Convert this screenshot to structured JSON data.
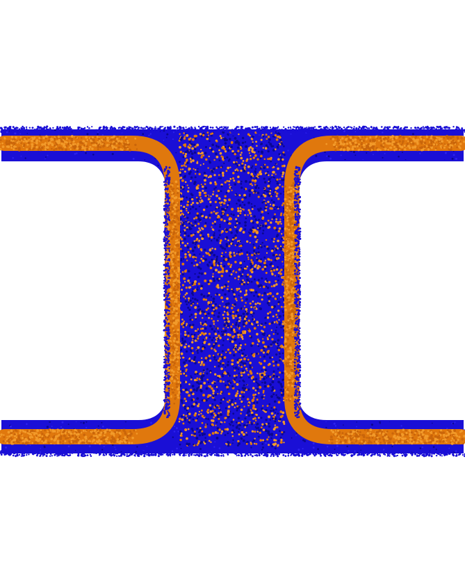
{
  "scene": {
    "subject": "membrane-fusion-stalk-particle-render",
    "colors": {
      "background": "#ffffff",
      "headgroup": "#1a0fd6",
      "headgroup_dark": "#0b0790",
      "tail": "#e0780d",
      "tail_light": "#f29a2a"
    }
  }
}
